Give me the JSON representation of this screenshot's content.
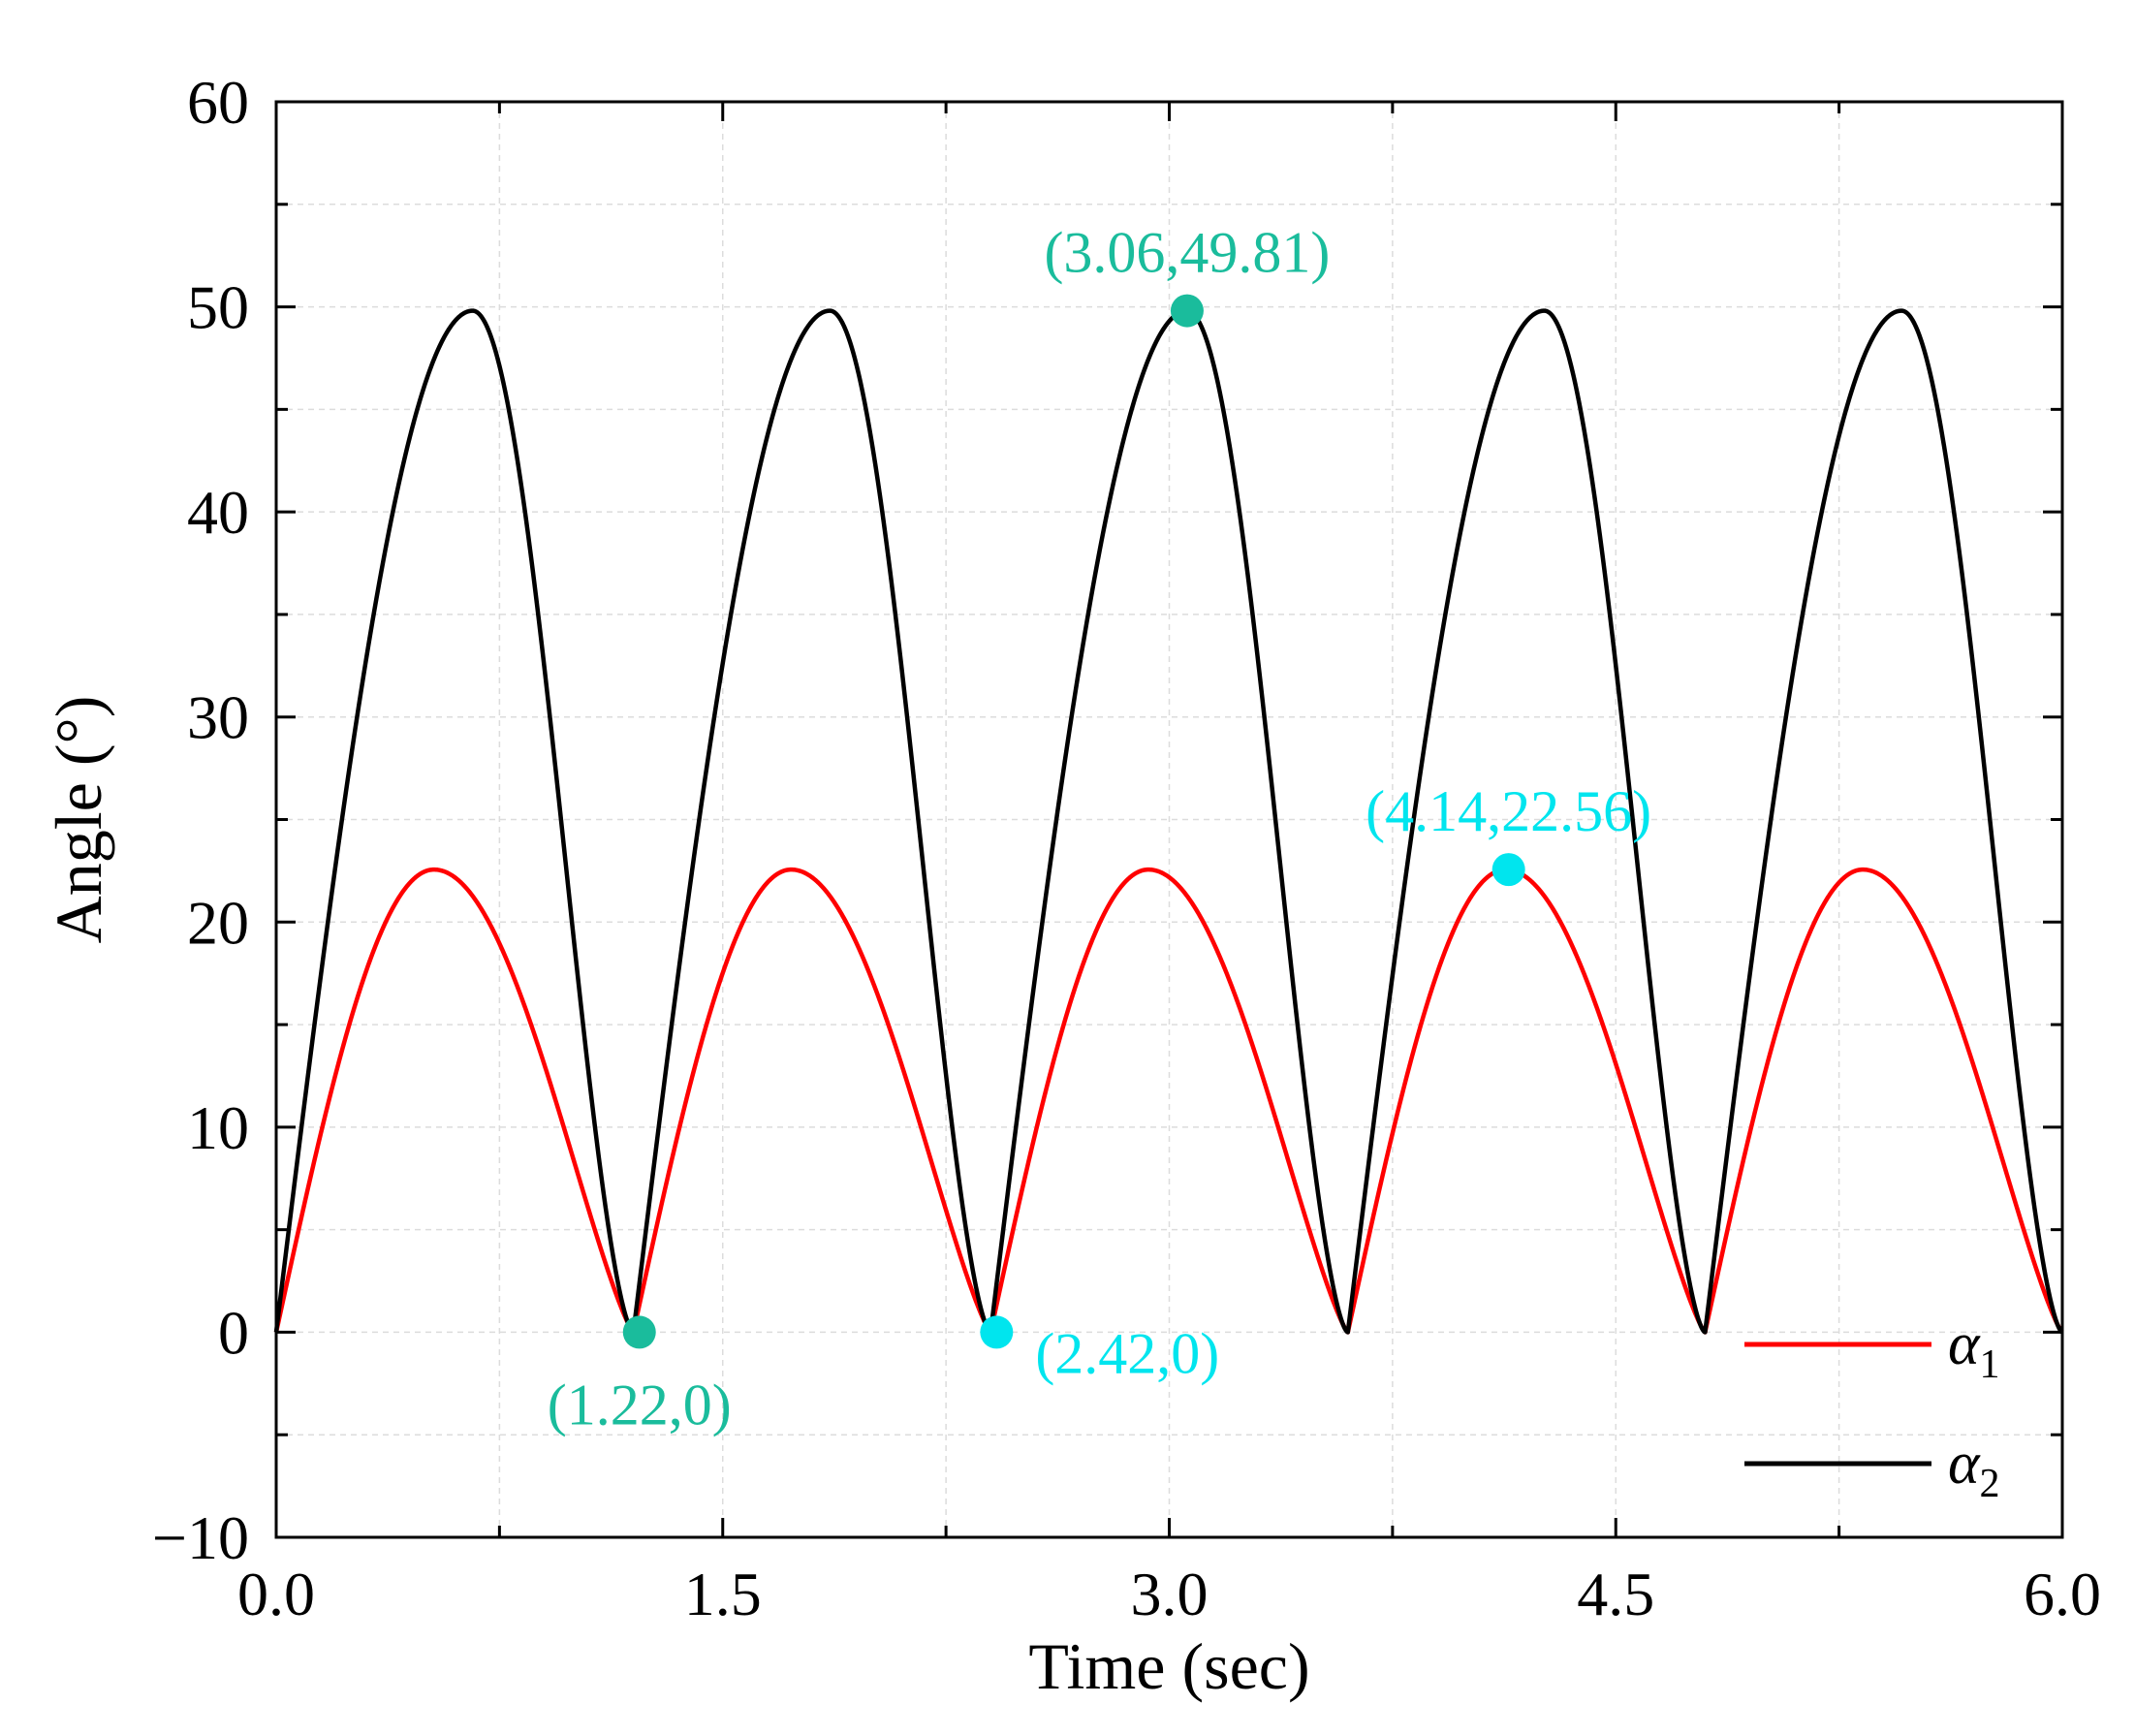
{
  "chart_data": {
    "type": "line",
    "title": "",
    "xlabel": "Time (sec)",
    "ylabel": "Angle (°)",
    "xlim": [
      0,
      6
    ],
    "ylim": [
      -10,
      60
    ],
    "xticks": [
      0,
      1.5,
      3,
      4.5,
      6
    ],
    "xtick_labels": [
      "0.0",
      "1.5",
      "3.0",
      "4.5",
      "6.0"
    ],
    "yticks": [
      -10,
      0,
      10,
      20,
      30,
      40,
      50,
      60
    ],
    "ytick_labels": [
      "−10",
      "0",
      "10",
      "20",
      "30",
      "40",
      "50",
      "60"
    ],
    "grid": true,
    "period": 1.2,
    "series": [
      {
        "name": "α1",
        "symbol": "α",
        "subscript": "1",
        "color": "#ff0000",
        "peak_t": 0.53,
        "peak_value": 22.56,
        "shape_exp": 1.25
      },
      {
        "name": "α2",
        "symbol": "α",
        "subscript": "2",
        "color": "#000000",
        "peak_t": 0.66,
        "peak_value": 49.81,
        "shape_exp": 1.6
      }
    ],
    "annotations": [
      {
        "x": 1.22,
        "y": 0,
        "text": "(1.22,0)",
        "color": "#1abc9c",
        "position": "below"
      },
      {
        "x": 2.42,
        "y": 0,
        "text": "(2.42,0)",
        "color": "#00e5ee",
        "position": "right"
      },
      {
        "x": 3.06,
        "y": 49.81,
        "text": "(3.06,49.81)",
        "color": "#1abc9c",
        "position": "above"
      },
      {
        "x": 4.14,
        "y": 22.56,
        "text": "(4.14,22.56)",
        "color": "#00e5ee",
        "position": "above"
      }
    ],
    "legend": {
      "position": "bottom-right"
    }
  }
}
